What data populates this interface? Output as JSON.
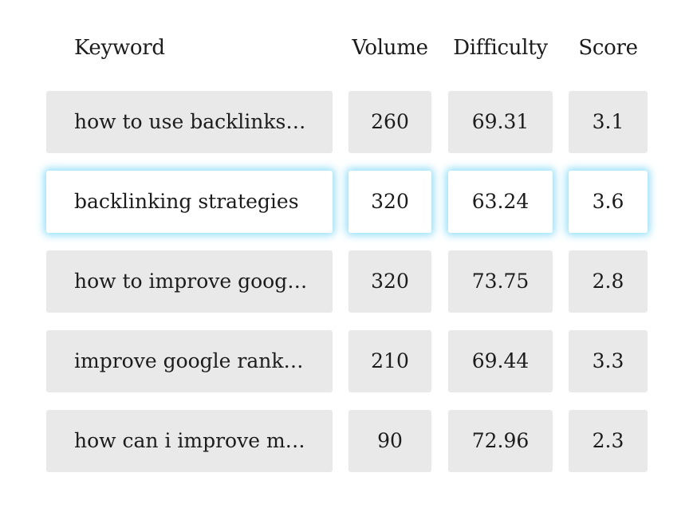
{
  "headers": {
    "keyword": "Keyword",
    "volume": "Volume",
    "difficulty": "Difficulty",
    "score": "Score"
  },
  "rows": [
    {
      "keyword": "how to use backlinks…",
      "volume": "260",
      "difficulty": "69.31",
      "score": "3.1",
      "selected": false
    },
    {
      "keyword": "backlinking strategies",
      "volume": "320",
      "difficulty": "63.24",
      "score": "3.6",
      "selected": true
    },
    {
      "keyword": "how to improve goog…",
      "volume": "320",
      "difficulty": "73.75",
      "score": "2.8",
      "selected": false
    },
    {
      "keyword": "improve google rank…",
      "volume": "210",
      "difficulty": "69.44",
      "score": "3.3",
      "selected": false
    },
    {
      "keyword": "how can i improve m…",
      "volume": "90",
      "difficulty": "72.96",
      "score": "2.3",
      "selected": false
    }
  ],
  "colors": {
    "cell_bg": "#e9e9e9",
    "selected_bg": "#ffffff",
    "selected_glow": "#58cdf5",
    "text": "#1c1c1c"
  }
}
